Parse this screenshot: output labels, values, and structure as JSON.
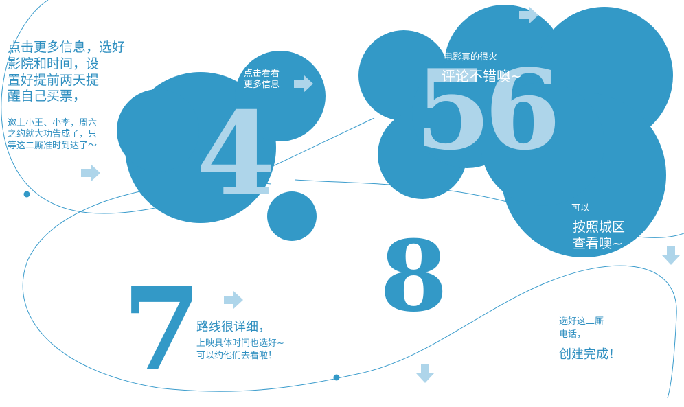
{
  "colors": {
    "primary_blue": "#3399c7",
    "light_blue": "#aed5ea",
    "line_blue": "#3b9ccc",
    "text_blue": "#2f8fc0"
  },
  "icons": [
    "arrow-right-icon",
    "arrow-down-icon"
  ],
  "steps": {
    "step4": {
      "number": "4",
      "note_left": [
        "点击更多信息，选好",
        "影院和时间，设",
        "置好提前两天提",
        "醒自己买票，"
      ],
      "note_left_small": [
        "邀上小王、小李，周六",
        "之约就大功告成了，只",
        "等这二厮准时到达了～"
      ],
      "note_right": [
        "点击看看",
        "更多信息"
      ]
    },
    "step56": {
      "number": "56",
      "note_small": "电影真的很火",
      "note_large": "评论不错噢~"
    },
    "step_area": {
      "note_small": "可以",
      "note_lines": [
        "按照城区",
        "查看噢~"
      ]
    },
    "step7": {
      "number": "7",
      "note_title": "路线很详细，",
      "note_lines": [
        "上映具体时间也选好~",
        "可以约他们去看啦！"
      ]
    },
    "step8": {
      "number": "8",
      "note_small": [
        "选好这二厮",
        "电话，"
      ],
      "note_large": "创建完成！"
    }
  }
}
